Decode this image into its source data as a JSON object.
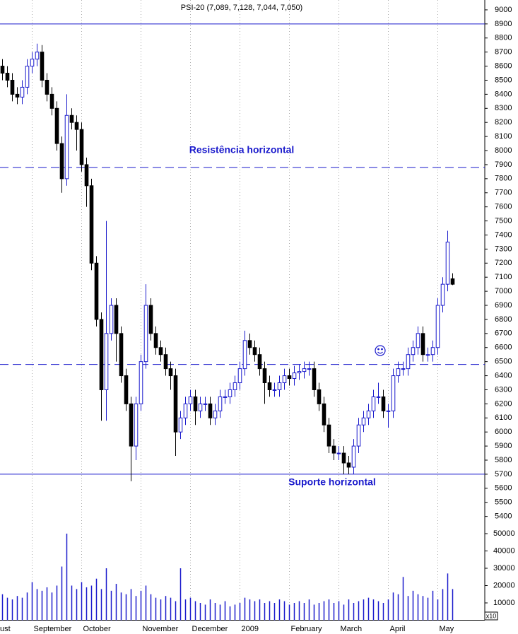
{
  "chart_data": {
    "type": "candlestick",
    "title": "PSI-20 (7,089, 7,128, 7,044, 7,050)",
    "categories": [
      "ust",
      null,
      null,
      null,
      null,
      null,
      "September",
      null,
      null,
      null,
      null,
      null,
      null,
      null,
      null,
      null,
      "October",
      null,
      null,
      null,
      null,
      null,
      null,
      null,
      null,
      null,
      null,
      null,
      "November",
      null,
      null,
      null,
      null,
      null,
      null,
      null,
      null,
      null,
      "December",
      null,
      null,
      null,
      null,
      null,
      null,
      null,
      null,
      null,
      "2009",
      null,
      null,
      null,
      null,
      null,
      null,
      null,
      null,
      null,
      "February",
      null,
      null,
      null,
      null,
      null,
      null,
      null,
      null,
      null,
      "March",
      null,
      null,
      null,
      null,
      null,
      null,
      null,
      null,
      null,
      "April",
      null,
      null,
      null,
      null,
      null,
      null,
      null,
      null,
      null,
      "May",
      null,
      null,
      null
    ],
    "open": [
      8600,
      8550,
      8500,
      8400,
      8380,
      8450,
      8600,
      8650,
      8700,
      8500,
      8400,
      8300,
      8050,
      7800,
      8250,
      8200,
      8150,
      7900,
      7750,
      7200,
      6800,
      6300,
      6700,
      6900,
      6700,
      6400,
      6200,
      5900,
      6200,
      6500,
      6900,
      6700,
      6600,
      6550,
      6450,
      6400,
      6000,
      6100,
      6200,
      6250,
      6150,
      6200,
      6200,
      6100,
      6150,
      6250,
      6250,
      6300,
      6350,
      6450,
      6650,
      6600,
      6550,
      6450,
      6350,
      6300,
      6300,
      6350,
      6400,
      6380,
      6420,
      6430,
      6450,
      6450,
      6300,
      6200,
      6050,
      5900,
      5850,
      5850,
      5780,
      5750,
      5900,
      6050,
      6100,
      6150,
      6250,
      6250,
      6150,
      6150,
      6400,
      6450,
      6450,
      6550,
      6600,
      6700,
      6550,
      6550,
      6600,
      6900,
      7050,
      7089
    ],
    "high": [
      8650,
      8600,
      8550,
      8450,
      8500,
      8650,
      8700,
      8760,
      8750,
      8550,
      8450,
      8350,
      8100,
      8400,
      8300,
      8250,
      8200,
      7950,
      7800,
      7250,
      6850,
      7500,
      6950,
      6950,
      6750,
      6450,
      6250,
      6250,
      6550,
      7050,
      6950,
      6750,
      6650,
      6600,
      6500,
      6450,
      6150,
      6250,
      6300,
      6300,
      6250,
      6250,
      6250,
      6200,
      6300,
      6300,
      6350,
      6400,
      6500,
      6720,
      6700,
      6650,
      6600,
      6500,
      6400,
      6350,
      6400,
      6450,
      6450,
      6470,
      6480,
      6500,
      6500,
      6500,
      6350,
      6250,
      6100,
      5950,
      5900,
      5900,
      5830,
      5950,
      6100,
      6150,
      6200,
      6300,
      6350,
      6300,
      6200,
      6450,
      6500,
      6500,
      6600,
      6650,
      6750,
      6750,
      6600,
      6650,
      6950,
      7100,
      7430,
      7128
    ],
    "low": [
      8500,
      8450,
      8350,
      8330,
      8330,
      8400,
      8550,
      8600,
      8450,
      8350,
      8250,
      8000,
      7700,
      7750,
      8150,
      8000,
      7850,
      7600,
      7150,
      6750,
      6080,
      6080,
      6650,
      6500,
      6350,
      6150,
      5650,
      5800,
      6150,
      6450,
      6650,
      6550,
      6500,
      6400,
      6300,
      5830,
      5950,
      6050,
      6150,
      6050,
      6100,
      6150,
      6050,
      6050,
      6100,
      6200,
      6200,
      6250,
      6300,
      6400,
      6550,
      6500,
      6400,
      6200,
      6250,
      6250,
      6250,
      6300,
      6330,
      6330,
      6370,
      6380,
      6400,
      6250,
      6150,
      6000,
      5850,
      5800,
      5800,
      5700,
      5700,
      5700,
      5850,
      6000,
      6050,
      6100,
      6200,
      6100,
      6030,
      6100,
      6350,
      6400,
      6400,
      6500,
      6550,
      6500,
      6500,
      6500,
      6550,
      6850,
      7000,
      7044
    ],
    "close": [
      8550,
      8500,
      8400,
      8380,
      8450,
      8600,
      8650,
      8700,
      8500,
      8400,
      8300,
      8050,
      7800,
      8250,
      8200,
      8150,
      7900,
      7750,
      7200,
      6800,
      6300,
      6700,
      6900,
      6700,
      6400,
      6200,
      5900,
      6200,
      6500,
      6900,
      6700,
      6600,
      6550,
      6450,
      6400,
      6000,
      6100,
      6200,
      6250,
      6150,
      6200,
      6200,
      6100,
      6150,
      6250,
      6250,
      6300,
      6350,
      6450,
      6650,
      6600,
      6550,
      6450,
      6350,
      6300,
      6300,
      6350,
      6400,
      6380,
      6420,
      6430,
      6450,
      6450,
      6300,
      6200,
      6050,
      5900,
      5850,
      5850,
      5780,
      5750,
      5900,
      6050,
      6100,
      6150,
      6250,
      6250,
      6150,
      6150,
      6400,
      6450,
      6450,
      6550,
      6600,
      6700,
      6550,
      6550,
      6600,
      6900,
      7050,
      7350,
      7050
    ],
    "volume": [
      15000,
      13000,
      12000,
      14000,
      13000,
      16000,
      22000,
      18000,
      17000,
      19000,
      16000,
      20000,
      31000,
      50000,
      20000,
      18000,
      22000,
      19000,
      20000,
      24000,
      18000,
      30000,
      17000,
      21000,
      16000,
      15000,
      18000,
      14000,
      17000,
      20000,
      15000,
      13000,
      12000,
      14000,
      13000,
      11000,
      30000,
      12000,
      13000,
      11000,
      10000,
      9000,
      12000,
      10000,
      9000,
      11000,
      8000,
      9000,
      10000,
      13000,
      12000,
      11000,
      12000,
      10000,
      11000,
      10000,
      12000,
      11000,
      9000,
      10000,
      11000,
      10000,
      12000,
      9000,
      10000,
      11000,
      12000,
      10000,
      11000,
      9000,
      12000,
      10000,
      11000,
      12000,
      13000,
      12000,
      11000,
      10000,
      12000,
      16000,
      15000,
      25000,
      14000,
      17000,
      15000,
      14000,
      13000,
      17000,
      12000,
      18000,
      27000,
      18000
    ],
    "up_color": "#1a1acc",
    "down_color": "#000000",
    "volume_color": "#1a1acc",
    "ylim": [
      5350,
      9070
    ],
    "yticks": [
      5400,
      5500,
      5600,
      5700,
      5800,
      5900,
      6000,
      6100,
      6200,
      6300,
      6400,
      6500,
      6600,
      6700,
      6800,
      6900,
      7000,
      7100,
      7200,
      7300,
      7400,
      7500,
      7600,
      7700,
      7800,
      7900,
      8000,
      8100,
      8200,
      8300,
      8400,
      8500,
      8600,
      8700,
      8800,
      8900,
      9000
    ],
    "y2lim": [
      0,
      58000
    ],
    "y2ticks": [
      10000,
      20000,
      30000,
      40000,
      50000
    ],
    "y2_unit_label": "x10",
    "hlines": [
      {
        "value": 8900,
        "style": "solid"
      },
      {
        "value": 7880,
        "style": "dashed"
      },
      {
        "value": 6480,
        "style": "dashed"
      },
      {
        "value": 5700,
        "style": "solid"
      }
    ],
    "annotations": [
      "Resistência horizontal",
      "Suporte horizontal"
    ],
    "grid": true
  }
}
